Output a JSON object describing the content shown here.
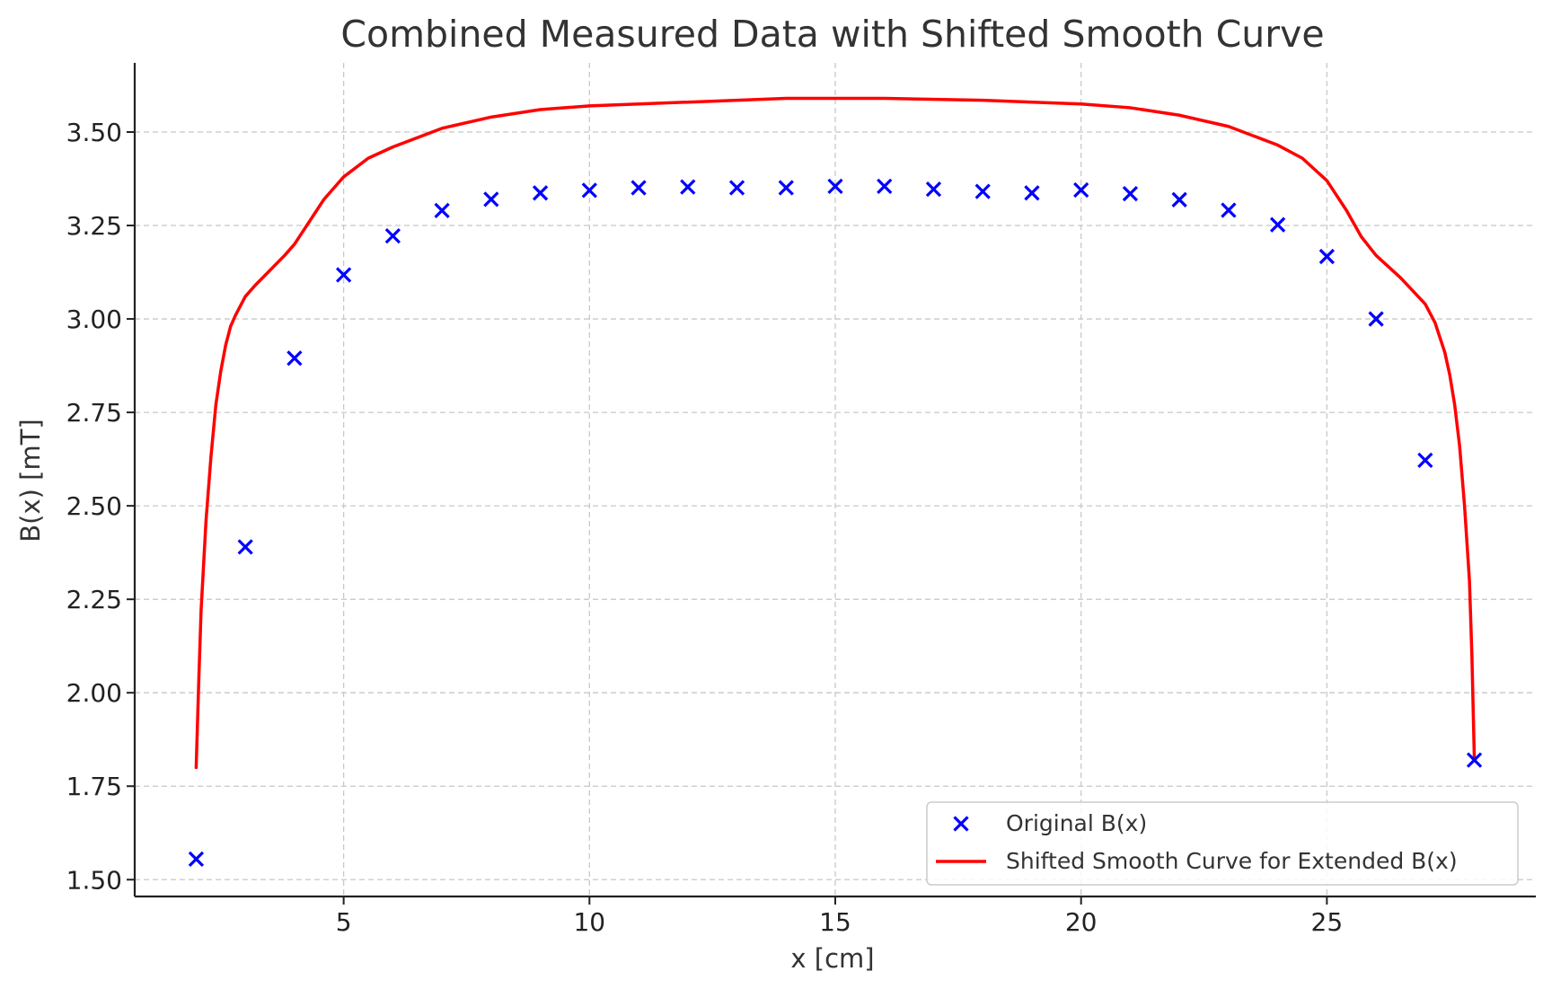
{
  "chart_data": {
    "type": "scatter",
    "title": "Combined Measured Data with Shifted Smooth Curve",
    "xlabel": "x [cm]",
    "ylabel": "B(x) [mT]",
    "xlim": [
      0.75,
      29.25
    ],
    "ylim": [
      1.455,
      3.685
    ],
    "xticks": [
      5,
      10,
      15,
      20,
      25
    ],
    "xtick_labels": [
      "5",
      "10",
      "15",
      "20",
      "25"
    ],
    "yticks": [
      1.5,
      1.75,
      2.0,
      2.25,
      2.5,
      2.75,
      3.0,
      3.25,
      3.5
    ],
    "ytick_labels": [
      "1.50",
      "1.75",
      "2.00",
      "2.25",
      "2.50",
      "2.75",
      "3.00",
      "3.25",
      "3.50"
    ],
    "grid": true,
    "legend_position": "lower-right",
    "series": [
      {
        "name": "Original B(x)",
        "kind": "scatter",
        "marker": "x",
        "color": "#0000ff",
        "x": [
          2,
          3,
          4,
          5,
          6,
          7,
          8,
          9,
          10,
          11,
          12,
          13,
          14,
          15,
          16,
          17,
          18,
          19,
          20,
          21,
          22,
          23,
          24,
          25,
          26,
          27,
          28
        ],
        "y": [
          1.555,
          2.39,
          2.895,
          3.118,
          3.222,
          3.29,
          3.32,
          3.337,
          3.344,
          3.351,
          3.353,
          3.351,
          3.351,
          3.355,
          3.355,
          3.347,
          3.341,
          3.337,
          3.345,
          3.335,
          3.319,
          3.291,
          3.252,
          3.167,
          3.0,
          2.622,
          1.82
        ]
      },
      {
        "name": "Shifted Smooth Curve for Extended B(x)",
        "kind": "line",
        "color": "#ff0000",
        "x": [
          2.0,
          2.05,
          2.1,
          2.2,
          2.3,
          2.4,
          2.5,
          2.6,
          2.7,
          2.8,
          3.0,
          3.2,
          3.5,
          3.8,
          4.0,
          4.3,
          4.6,
          5.0,
          5.5,
          6.0,
          7.0,
          8.0,
          9.0,
          10.0,
          12.0,
          14.0,
          15.0,
          16.0,
          18.0,
          20.0,
          21.0,
          22.0,
          23.0,
          24.0,
          24.5,
          25.0,
          25.4,
          25.7,
          26.0,
          26.5,
          27.0,
          27.2,
          27.4,
          27.5,
          27.6,
          27.7,
          27.8,
          27.9,
          27.95,
          28.0
        ],
        "y": [
          1.8,
          2.02,
          2.22,
          2.46,
          2.63,
          2.77,
          2.86,
          2.93,
          2.98,
          3.01,
          3.06,
          3.09,
          3.13,
          3.17,
          3.2,
          3.26,
          3.32,
          3.38,
          3.43,
          3.46,
          3.51,
          3.54,
          3.56,
          3.57,
          3.58,
          3.59,
          3.59,
          3.59,
          3.585,
          3.575,
          3.565,
          3.545,
          3.515,
          3.465,
          3.43,
          3.37,
          3.29,
          3.22,
          3.17,
          3.11,
          3.04,
          2.99,
          2.91,
          2.85,
          2.77,
          2.66,
          2.5,
          2.3,
          2.1,
          1.82
        ]
      }
    ]
  }
}
